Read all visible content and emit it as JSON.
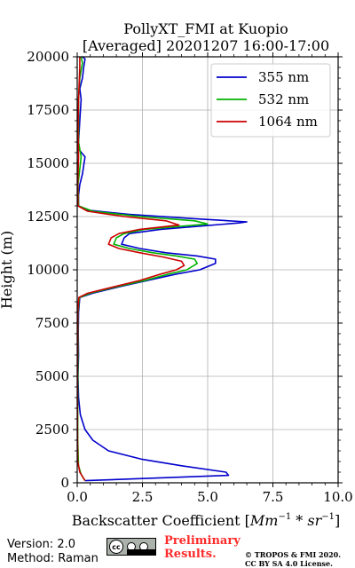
{
  "title_line1": "PollyXT_FMI at Kuopio",
  "title_line2": "[Averaged] 20201207 16:00-17:00",
  "footer": {
    "version": "Version: 2.0",
    "method": "Method: Raman",
    "cc_text": "cc",
    "preliminary_line1": "Preliminary",
    "preliminary_line2": "Results.",
    "copyright_line1": "© TROPOS & FMI 2020.",
    "copyright_line2": "CC BY SA 4.0 License."
  },
  "colors": {
    "355": "#0000cc",
    "532": "#00b300",
    "1064": "#cc0000",
    "grid": "#b0b0b0",
    "prelim": "#ff2a2a"
  },
  "chart_data": {
    "type": "line",
    "title": "PollyXT_FMI at Kuopio\n[Averaged] 20201207 16:00-17:00",
    "xlabel": "Backscatter Coefficient [Mm^-1 * sr^-1]",
    "ylabel": "Height (m)",
    "xlim": [
      0,
      10
    ],
    "ylim": [
      0,
      20000
    ],
    "xticks": [
      "0.0",
      "2.5",
      "5.0",
      "7.5",
      "10.0"
    ],
    "yticks": [
      "0",
      "2500",
      "5000",
      "7500",
      "10000",
      "12500",
      "15000",
      "17500",
      "20000"
    ],
    "xtick_values": [
      0,
      2.5,
      5,
      7.5,
      10
    ],
    "ytick_values": [
      0,
      2500,
      5000,
      7500,
      10000,
      12500,
      15000,
      17500,
      20000
    ],
    "grid": true,
    "legend_position": "top-right",
    "series": [
      {
        "name": "355 nm",
        "points": [
          [
            0.3,
            100
          ],
          [
            2.5,
            200
          ],
          [
            5.8,
            350
          ],
          [
            5.7,
            500
          ],
          [
            4.0,
            800
          ],
          [
            2.5,
            1100
          ],
          [
            1.2,
            1500
          ],
          [
            0.6,
            2000
          ],
          [
            0.3,
            2500
          ],
          [
            0.12,
            3200
          ],
          [
            0.05,
            4000
          ],
          [
            0.03,
            5000
          ],
          [
            0.05,
            6000
          ],
          [
            0.04,
            7000
          ],
          [
            0.05,
            8000
          ],
          [
            0.1,
            8700
          ],
          [
            0.6,
            8900
          ],
          [
            1.6,
            9200
          ],
          [
            2.7,
            9500
          ],
          [
            3.8,
            9800
          ],
          [
            4.7,
            10000
          ],
          [
            5.3,
            10300
          ],
          [
            5.3,
            10500
          ],
          [
            4.6,
            10650
          ],
          [
            3.4,
            10800
          ],
          [
            2.4,
            11000
          ],
          [
            1.7,
            11200
          ],
          [
            1.8,
            11500
          ],
          [
            2.0,
            11700
          ],
          [
            3.2,
            11900
          ],
          [
            6.2,
            12200
          ],
          [
            6.5,
            12250
          ],
          [
            4.5,
            12400
          ],
          [
            2.0,
            12600
          ],
          [
            0.4,
            12800
          ],
          [
            0.05,
            13000
          ],
          [
            0.05,
            13500
          ],
          [
            0.1,
            14000
          ],
          [
            0.2,
            14500
          ],
          [
            0.3,
            15300
          ],
          [
            0.1,
            15600
          ],
          [
            0.05,
            16000
          ],
          [
            0.1,
            17000
          ],
          [
            0.15,
            18000
          ],
          [
            0.1,
            18500
          ],
          [
            0.2,
            19000
          ],
          [
            0.25,
            19500
          ],
          [
            0.3,
            19900
          ],
          [
            0.2,
            20000
          ]
        ]
      },
      {
        "name": "532 nm",
        "points": [
          [
            0.3,
            100
          ],
          [
            0.15,
            400
          ],
          [
            0.05,
            800
          ],
          [
            0.02,
            2000
          ],
          [
            0.02,
            4000
          ],
          [
            0.03,
            6000
          ],
          [
            0.03,
            8000
          ],
          [
            0.08,
            8700
          ],
          [
            0.5,
            8900
          ],
          [
            1.5,
            9200
          ],
          [
            2.6,
            9500
          ],
          [
            3.5,
            9800
          ],
          [
            4.2,
            10000
          ],
          [
            4.6,
            10300
          ],
          [
            4.5,
            10500
          ],
          [
            3.8,
            10650
          ],
          [
            2.9,
            10800
          ],
          [
            2.0,
            11000
          ],
          [
            1.4,
            11200
          ],
          [
            1.5,
            11500
          ],
          [
            1.8,
            11700
          ],
          [
            2.6,
            11900
          ],
          [
            5.0,
            12150
          ],
          [
            4.5,
            12300
          ],
          [
            2.4,
            12500
          ],
          [
            0.6,
            12750
          ],
          [
            0.05,
            13000
          ],
          [
            0.03,
            14000
          ],
          [
            0.15,
            15300
          ],
          [
            0.05,
            16000
          ],
          [
            0.05,
            18000
          ],
          [
            0.1,
            19000
          ],
          [
            0.2,
            19700
          ],
          [
            0.15,
            20000
          ]
        ]
      },
      {
        "name": "1064 nm",
        "points": [
          [
            0.3,
            100
          ],
          [
            0.1,
            500
          ],
          [
            0.02,
            1000
          ],
          [
            0.01,
            2500
          ],
          [
            0.01,
            5000
          ],
          [
            0.02,
            7000
          ],
          [
            0.02,
            8000
          ],
          [
            0.06,
            8700
          ],
          [
            0.4,
            8900
          ],
          [
            1.4,
            9200
          ],
          [
            2.4,
            9500
          ],
          [
            3.2,
            9800
          ],
          [
            3.8,
            10000
          ],
          [
            4.1,
            10200
          ],
          [
            4.0,
            10400
          ],
          [
            3.3,
            10600
          ],
          [
            2.4,
            10800
          ],
          [
            1.6,
            11000
          ],
          [
            1.2,
            11200
          ],
          [
            1.3,
            11500
          ],
          [
            1.6,
            11700
          ],
          [
            2.4,
            11900
          ],
          [
            3.9,
            12100
          ],
          [
            3.4,
            12300
          ],
          [
            1.8,
            12500
          ],
          [
            0.4,
            12750
          ],
          [
            0.03,
            13000
          ],
          [
            0.02,
            14000
          ],
          [
            0.05,
            15300
          ],
          [
            0.03,
            16500
          ],
          [
            0.05,
            18000
          ],
          [
            0.1,
            19500
          ],
          [
            0.1,
            20000
          ]
        ]
      }
    ]
  }
}
